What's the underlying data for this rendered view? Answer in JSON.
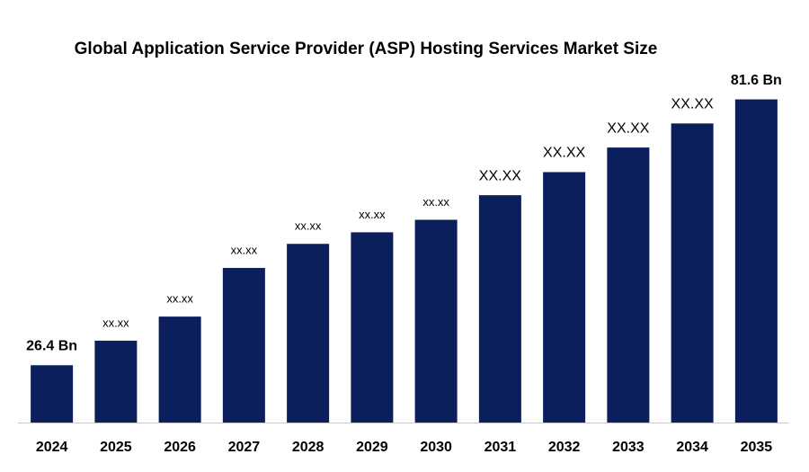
{
  "chart_data": {
    "type": "bar",
    "title": "Global Application Service Provider (ASP) Hosting Services Market Size",
    "categories": [
      "2024",
      "2025",
      "2026",
      "2027",
      "2028",
      "2029",
      "2030",
      "2031",
      "2032",
      "2033",
      "2034",
      "2035"
    ],
    "values": [
      26.4,
      31.5,
      36.5,
      46.6,
      51.6,
      54.0,
      56.6,
      61.7,
      66.5,
      71.6,
      76.6,
      81.6
    ],
    "value_labels": [
      "26.4 Bn",
      "xx.xx",
      "xx.xx",
      "xx.xx",
      "xx.xx",
      "xx.xx",
      "xx.xx",
      "XX.XX",
      "XX.XX",
      "XX.XX",
      "XX.XX",
      "81.6 Bn"
    ],
    "color": "#0a1f5c",
    "ylim": [
      14.5,
      84.5
    ]
  }
}
